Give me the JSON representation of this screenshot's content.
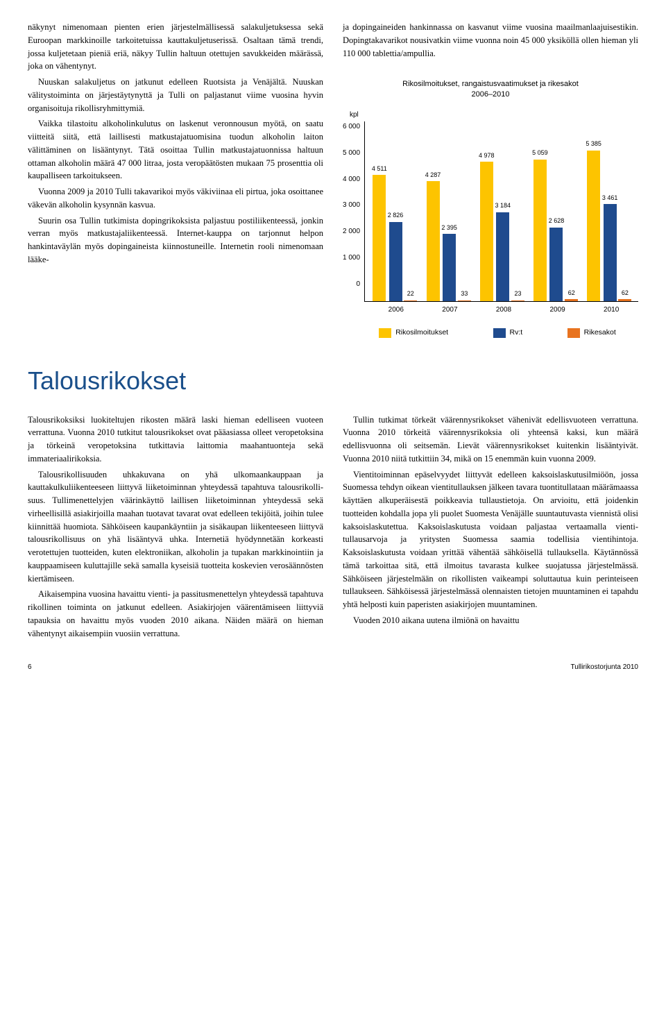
{
  "top_left": {
    "p1": "näkynyt nimenomaan pienten erien järjestelmälli­sessä salakuljetuksessa sekä Euroopan markkinoil­le tarkoitetuissa kauttakuljetuserissä. Osaltaan tä­mä trendi, jossa kuljetetaan pieniä eriä, näkyy Tul­lin haltuun otettujen savukkeiden määrässä, joka on vähentynyt.",
    "p2": "Nuuskan salakuljetus on jatkunut edelleen Ruot­sista ja Venäjältä. Nuuskan välitystoiminta on järjes­täytynyttä ja Tulli on paljastanut viime vuosina hy­vin organisoituja rikollisryhmittymiä.",
    "p3": "Vaikka tilastoitu alkoholinkulutus on laskenut veronnousun myötä, on saatu viitteitä siitä, että lail­lisesti matkustajatuomisina tuodun alkoholin lai­ton välittäminen on lisääntynyt. Tätä osoittaa Tul­lin matkustajatuonnissa haltuun ottaman alkoholin määrä 47 000 litraa, josta veropäätösten mukaan 75 prosenttia oli kaupalliseen tarkoitukseen.",
    "p4": "Vuonna 2009 ja 2010 Tulli takavarikoi myös vä­kiviinaa eli pirtua, joka osoittanee väkevän alkoholin kysynnän kasvua.",
    "p5": "Suurin osa Tullin tutkimista dopingrikoksis­ta paljastuu postiliikenteessä, jonkin verran myös matkustajaliikenteessä. Internet-kauppa on tarjon­nut helpon hankintaväylän myös dopingaineista kiinnostuneille. Internetin rooli nimenomaan lääke-"
  },
  "top_right": {
    "p1": "ja dopingaineiden hankinnassa on kasvanut viime vuosina maailmanlaajuisestikin. Dopingtakavari­kot nousivatkin viime vuonna noin 45 000 yksiköllä ollen hieman yli 110 000 tablettia/ampullia."
  },
  "chart": {
    "title_line1": "Rikosilmoitukset, rangaistusvaatimukset ja rikesakot",
    "title_line2": "2006–2010",
    "y_unit": "kpl",
    "y_ticks": [
      "6 000",
      "5 000",
      "4 000",
      "3 000",
      "2 000",
      "1 000",
      "0"
    ],
    "y_max": 6000,
    "years": [
      "2006",
      "2007",
      "2008",
      "2009",
      "2010"
    ],
    "series": {
      "rikosilmoitukset": {
        "color": "#fdc400",
        "label": "Rikosilmoitukset",
        "values": [
          4511,
          4287,
          4978,
          5059,
          5385
        ]
      },
      "rvt": {
        "color": "#1f4b8e",
        "label": "Rv:t",
        "values": [
          2826,
          2395,
          3184,
          2628,
          3461
        ]
      },
      "rikesakot": {
        "color": "#e8731f",
        "label": "Rikesakot",
        "values": [
          22,
          33,
          23,
          62,
          62
        ]
      }
    }
  },
  "section_heading": "Talousrikokset",
  "bottom_left": {
    "p1": "Talousrikoksiksi luokiteltujen rikosten määrä laski hieman edelliseen vuoteen verrattuna. Vuonna 2010 tutkitut talousrikokset ovat pääasiassa olleet verope­toksina ja törkeinä veropetoksina tutkittavia laitto­mia maahantuonteja sekä immateriaalirikoksia.",
    "p2": "Talousrikollisuuden uhkakuvana on yhä ulko­maankauppaan ja kauttakulkuliikenteeseen liittyvä liiketoiminnan yhteydessä tapahtuva talousrikolli­suus. Tullimenettelyjen väärinkäyttö laillisen liike­toiminnan yhteydessä sekä virheellisillä asiakirjoilla maahan tuotavat tavarat ovat edelleen tekijöitä, joi­hin tulee kiinnittää huomiota. Sähköiseen kaupan­käyntiin ja sisäkaupan liikenteeseen liittyvä talous­rikollisuus on yhä lisääntyvä uhka. Internetiä hyö­dynnetään korkeasti verotettujen tuotteiden, kuten elektroniikan, alkoholin ja tupakan markkinointiin ja kauppaamiseen kuluttajille sekä samalla kyseisiä tuotteita koskevien verosäännösten kiertämiseen.",
    "p3": "Aikaisempina vuosina havaittu vienti- ja passi­tusmenettelyn yhteydessä tapahtuva rikollinen toi­minta on jatkunut edelleen. Asiakirjojen väärentä­miseen liittyviä tapauksia on havaittu myös vuoden 2010 aikana. Näiden määrä on hieman vähentynyt aikaisempiin vuosiin verrattuna."
  },
  "bottom_right": {
    "p1": "Tullin tutkimat törkeät väärennysrikokset vähe­nivät edellisvuoteen verrattuna. Vuonna 2010 törkei­tä väärennysrikoksia oli yhteensä kaksi, kun määrä edellisvuonna oli seitsemän. Lievät väärennysrikok­set kuitenkin lisääntyivät. Vuonna 2010 niitä tutkit­tiin 34, mikä on 15 enemmän kuin vuonna 2009.",
    "p2": "Vientitoiminnan epäselvyydet liittyvät edelleen kaksoislaskutusilmiöön, jossa Suomessa tehdyn oi­kean vientitullauksen jälkeen tavara tuontitullataan määrämaassa käyttäen alkuperäisestä poikkeavia tullaustietoja. On arvioitu, että joidenkin tuotteiden kohdalla jopa yli puolet Suomesta Venäjälle suun­tautuvasta viennistä olisi kaksoislaskutettua. Kak­soislaskutusta voidaan paljastaa vertaamalla vienti­tullausarvoja ja yritysten Suomessa saamia todelli­sia vientihintoja. Kaksoislaskutusta voidaan yrittää vähentää sähköisellä tullauksella. Käytännössä tämä tarkoittaa sitä, että ilmoitus tavarasta kulkee suoja­tussa järjestelmässä. Sähköiseen järjestelmään on ri­kollisten vaikeampi soluttautua kuin perinteiseen tullaukseen. Sähköisessä järjestelmässä olennaisten tietojen muuntaminen ei tapahdu yhtä helposti kuin paperisten asiakirjojen muuntaminen.",
    "p3": "Vuoden 2010 aikana uutena ilmiönä on havaittu"
  },
  "footer": {
    "page": "6",
    "title": "Tullirikostorjunta 2010"
  }
}
